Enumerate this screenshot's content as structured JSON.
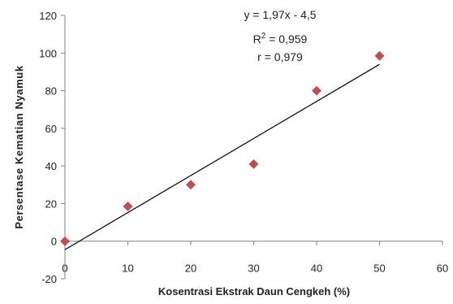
{
  "chart_data": {
    "type": "scatter",
    "xlabel": "Kosentrasi Ekstrak Daun Cengkeh (%)",
    "ylabel": "Persentase Kematian Nyamuk",
    "xlim": [
      0,
      60
    ],
    "ylim": [
      -20,
      120
    ],
    "x_ticks": [
      "0",
      "10",
      "20",
      "30",
      "40",
      "50",
      "60"
    ],
    "y_ticks": [
      "-20",
      "0",
      "20",
      "40",
      "60",
      "80",
      "100",
      "120"
    ],
    "grid": false,
    "series": [
      {
        "marker": "diamond",
        "color": "#c0504d",
        "x": [
          0,
          10,
          20,
          30,
          40,
          50
        ],
        "y": [
          0,
          18.5,
          30,
          41,
          80,
          98.5
        ]
      }
    ],
    "trendline": {
      "slope": 1.97,
      "intercept": -4.5,
      "x_range": [
        0,
        50
      ],
      "color": "#000000"
    },
    "annotations": {
      "equation": "y = 1,97x - 4,5",
      "r2_prefix": "R",
      "r2_exp": "2",
      "r2_value": " = 0,959",
      "r": "r = 0,979"
    }
  }
}
